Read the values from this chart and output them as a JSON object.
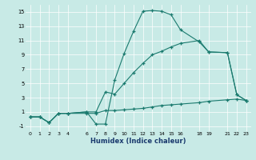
{
  "xlabel": "Humidex (Indice chaleur)",
  "bg_color": "#c8eae6",
  "line_color": "#1a7a6e",
  "grid_color": "#ffffff",
  "xlim": [
    -0.5,
    23.5
  ],
  "ylim": [
    -1.7,
    16.0
  ],
  "xtick_vals": [
    0,
    1,
    2,
    3,
    4,
    6,
    7,
    8,
    9,
    10,
    11,
    12,
    13,
    14,
    15,
    16,
    18,
    19,
    21,
    22,
    23
  ],
  "xtick_labels": [
    "0",
    "1",
    "2",
    "3",
    "4",
    "6",
    "7",
    "8",
    "9",
    "10",
    "11",
    "12",
    "13",
    "14",
    "15",
    "16",
    "18",
    "19",
    "21",
    "22",
    "23"
  ],
  "ytick_vals": [
    -1,
    1,
    3,
    5,
    7,
    9,
    11,
    13,
    15
  ],
  "line1_x": [
    0,
    1,
    2,
    3,
    4,
    6,
    7,
    8,
    9,
    10,
    11,
    12,
    13,
    14,
    15,
    16,
    18,
    19,
    21,
    22,
    23
  ],
  "line1_y": [
    0.3,
    0.3,
    -0.5,
    0.8,
    0.8,
    1.0,
    -0.7,
    -0.7,
    5.5,
    9.2,
    12.3,
    15.1,
    15.2,
    15.1,
    14.6,
    12.5,
    10.8,
    9.4,
    9.3,
    3.4,
    2.6
  ],
  "line2_x": [
    0,
    1,
    2,
    3,
    4,
    6,
    7,
    8,
    9,
    10,
    11,
    12,
    13,
    14,
    15,
    16,
    18,
    19,
    21,
    22,
    23
  ],
  "line2_y": [
    0.3,
    0.3,
    -0.5,
    0.8,
    0.8,
    1.0,
    1.0,
    3.8,
    3.5,
    5.0,
    6.5,
    7.8,
    9.0,
    9.5,
    10.1,
    10.6,
    11.0,
    9.4,
    9.3,
    3.4,
    2.6
  ],
  "line3_x": [
    0,
    1,
    2,
    3,
    4,
    6,
    7,
    8,
    9,
    10,
    11,
    12,
    13,
    14,
    15,
    16,
    18,
    19,
    21,
    22,
    23
  ],
  "line3_y": [
    0.3,
    0.3,
    -0.5,
    0.8,
    0.8,
    0.8,
    0.8,
    1.2,
    1.2,
    1.3,
    1.4,
    1.5,
    1.7,
    1.9,
    2.0,
    2.1,
    2.3,
    2.5,
    2.7,
    2.8,
    2.6
  ]
}
